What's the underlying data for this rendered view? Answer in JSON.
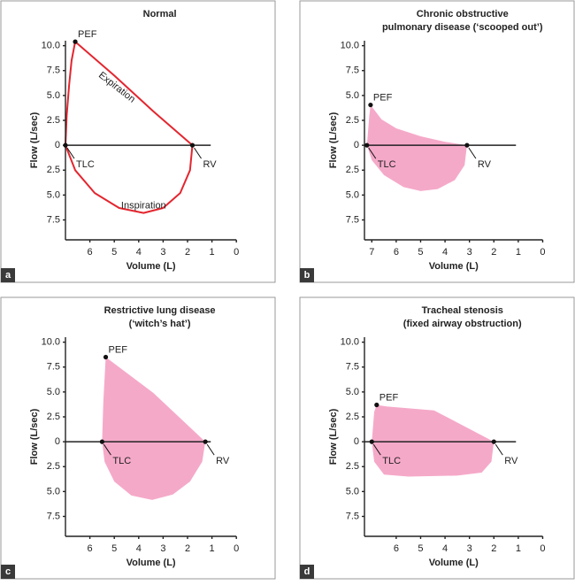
{
  "chart_data": [
    {
      "type": "line",
      "panel_label": "a",
      "title": [
        "Normal"
      ],
      "xlabel": "Volume (L)",
      "ylabel": "Flow (L/sec)",
      "color": "#e3262f",
      "x": [
        7,
        6.95,
        6.85,
        6.75,
        6.6,
        5,
        3.4,
        1.8,
        1.9,
        2.3,
        3,
        3.8,
        4.8,
        5.8,
        6.6,
        7
      ],
      "values": [
        0,
        3,
        6,
        8.5,
        10.4,
        7,
        3.4,
        0,
        -2.5,
        -4.8,
        -6.3,
        -6.8,
        -6.3,
        -4.8,
        -2.5,
        0
      ],
      "xlim": [
        7,
        0
      ],
      "xticks": [
        6,
        5,
        4,
        3,
        2,
        1,
        0
      ],
      "ylim": [
        -9.5,
        10.5
      ],
      "yticks": [
        {
          "value": 10,
          "label": "10.0"
        },
        {
          "value": 7.5,
          "label": "7.5"
        },
        {
          "value": 5,
          "label": "5.0"
        },
        {
          "value": 2.5,
          "label": "2.5"
        },
        0,
        {
          "value": -2.5,
          "label": "2.5"
        },
        {
          "value": -5,
          "label": "5.0"
        },
        {
          "value": -7.5,
          "label": "7.5"
        }
      ],
      "points": [
        {
          "label": "PEF",
          "x": 6.6,
          "y": 10.4
        },
        {
          "label": "TLC",
          "x": 7,
          "y": 0
        },
        {
          "label": "RV",
          "x": 1.8,
          "y": 0
        }
      ],
      "annotations": [
        {
          "text": "Expiration",
          "x": 4.9,
          "y": 5.8
        },
        {
          "text": "Inspiration",
          "x": 3.8,
          "y": -6.1
        }
      ]
    },
    {
      "type": "area",
      "panel_label": "b",
      "title": [
        "Chronic obstructive",
        "pulmonary disease (‘scooped out’)"
      ],
      "xlabel": "Volume (L)",
      "ylabel": "Flow (L/sec)",
      "color": "#f5a9c9",
      "x": [
        7.2,
        7.1,
        7.05,
        6.6,
        6,
        5,
        4,
        3.1,
        3.2,
        3.6,
        4.3,
        5,
        5.7,
        6.5,
        7,
        7.2
      ],
      "values": [
        0,
        3,
        4.05,
        2.6,
        1.7,
        0.9,
        0.35,
        0,
        -2,
        -3.5,
        -4.4,
        -4.6,
        -4.2,
        -3,
        -1.5,
        0
      ],
      "xlim": [
        7.3,
        0
      ],
      "xticks": [
        7,
        6,
        5,
        4,
        3,
        2,
        1,
        0
      ],
      "ylim": [
        -9.5,
        10.5
      ],
      "yticks": [
        {
          "value": 10,
          "label": "10.0"
        },
        {
          "value": 7.5,
          "label": "7.5"
        },
        {
          "value": 5,
          "label": "5.0"
        },
        {
          "value": 2.5,
          "label": "2.5"
        },
        0,
        {
          "value": -2.5,
          "label": "2.5"
        },
        {
          "value": -5,
          "label": "5.0"
        },
        {
          "value": -7.5,
          "label": "7.5"
        }
      ],
      "points": [
        {
          "label": "PEF",
          "x": 7.05,
          "y": 4.05
        },
        {
          "label": "TLC",
          "x": 7.2,
          "y": 0
        },
        {
          "label": "RV",
          "x": 3.1,
          "y": 0
        }
      ]
    },
    {
      "type": "area",
      "panel_label": "c",
      "title": [
        "Restrictive lung disease",
        "(‘witch’s hat’)"
      ],
      "xlabel": "Volume (L)",
      "ylabel": "Flow (L/sec)",
      "color": "#f5a9c9",
      "x": [
        5.5,
        5.45,
        5.35,
        3.4,
        1.27,
        1.4,
        1.9,
        2.6,
        3.45,
        4.3,
        5,
        5.4,
        5.5
      ],
      "values": [
        0,
        4,
        8.5,
        4.9,
        0,
        -2,
        -4,
        -5.3,
        -5.85,
        -5.4,
        -4,
        -2,
        0
      ],
      "xlim": [
        7,
        0
      ],
      "xticks": [
        6,
        5,
        4,
        3,
        2,
        1,
        0
      ],
      "ylim": [
        -9.5,
        10.5
      ],
      "yticks": [
        {
          "value": 10,
          "label": "10.0"
        },
        {
          "value": 7.5,
          "label": "7.5"
        },
        {
          "value": 5,
          "label": "5.0"
        },
        {
          "value": 2.5,
          "label": "2.5"
        },
        0,
        {
          "value": -2.5,
          "label": "2.5"
        },
        {
          "value": -5,
          "label": "5.0"
        },
        {
          "value": -7.5,
          "label": "7.5"
        }
      ],
      "points": [
        {
          "label": "PEF",
          "x": 5.35,
          "y": 8.5
        },
        {
          "label": "TLC",
          "x": 5.5,
          "y": 0
        },
        {
          "label": "RV",
          "x": 1.27,
          "y": 0
        }
      ]
    },
    {
      "type": "area",
      "panel_label": "d",
      "title": [
        "Tracheal stenosis",
        "(fixed airway obstruction)"
      ],
      "xlabel": "Volume (L)",
      "ylabel": "Flow (L/sec)",
      "color": "#f5a9c9",
      "x": [
        7,
        6.9,
        6.8,
        6.4,
        4.45,
        2,
        2.1,
        2.5,
        3.5,
        5.5,
        6.5,
        6.9,
        7
      ],
      "values": [
        0,
        3,
        3.7,
        3.55,
        3.15,
        0,
        -2,
        -3.1,
        -3.4,
        -3.5,
        -3.3,
        -2,
        0
      ],
      "xlim": [
        7.3,
        0
      ],
      "xticks": [
        6,
        5,
        4,
        3,
        2,
        1,
        0
      ],
      "ylim": [
        -9.5,
        10.5
      ],
      "yticks": [
        {
          "value": 10,
          "label": "10.0"
        },
        {
          "value": 7.5,
          "label": "7.5"
        },
        {
          "value": 5,
          "label": "5.0"
        },
        {
          "value": 2.5,
          "label": "2.5"
        },
        0,
        {
          "value": -2.5,
          "label": "2.5"
        },
        {
          "value": -5,
          "label": "5.0"
        },
        {
          "value": -7.5,
          "label": "7.5"
        }
      ],
      "points": [
        {
          "label": "PEF",
          "x": 6.8,
          "y": 3.7
        },
        {
          "label": "TLC",
          "x": 7,
          "y": 0
        },
        {
          "label": "RV",
          "x": 2,
          "y": 0
        }
      ]
    }
  ]
}
